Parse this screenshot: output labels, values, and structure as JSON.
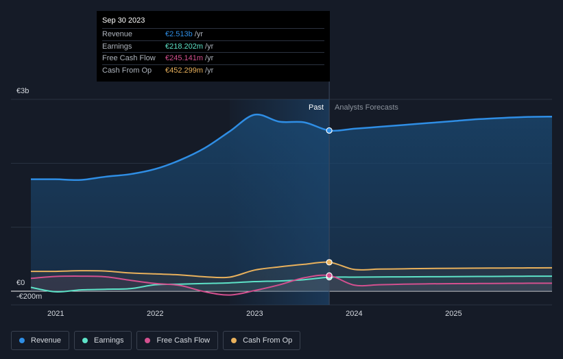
{
  "tooltip": {
    "date": "Sep 30 2023",
    "rows": [
      {
        "label": "Revenue",
        "value": "€2.513b",
        "unit": "/yr",
        "color": "#2f8ee5"
      },
      {
        "label": "Earnings",
        "value": "€218.202m",
        "unit": "/yr",
        "color": "#5ee3c8"
      },
      {
        "label": "Free Cash Flow",
        "value": "€245.141m",
        "unit": "/yr",
        "color": "#d4508f"
      },
      {
        "label": "Cash From Op",
        "value": "€452.299m",
        "unit": "/yr",
        "color": "#e9b15c"
      }
    ]
  },
  "legend": [
    {
      "label": "Revenue",
      "color": "#2f8ee5"
    },
    {
      "label": "Earnings",
      "color": "#5ee3c8"
    },
    {
      "label": "Free Cash Flow",
      "color": "#d4508f"
    },
    {
      "label": "Cash From Op",
      "color": "#e9b15c"
    }
  ],
  "chart_data": {
    "type": "line",
    "ylim": [
      -200,
      3000
    ],
    "y_ticks": [
      {
        "value": 3000,
        "label": "€3b"
      },
      {
        "value": 0,
        "label": "€0"
      },
      {
        "value": -200,
        "label": "-€200m"
      }
    ],
    "x_ticks": [
      {
        "value": 2021,
        "label": "2021"
      },
      {
        "value": 2022,
        "label": "2022"
      },
      {
        "value": 2023,
        "label": "2023"
      },
      {
        "value": 2024,
        "label": "2024"
      },
      {
        "value": 2025,
        "label": "2025"
      }
    ],
    "xlim": [
      2020.55,
      2025.99
    ],
    "divider_x": 2023.75,
    "highlight_start_x": 2022.75,
    "past_label": "Past",
    "forecast_label": "Analysts Forecasts",
    "grid": true,
    "series": [
      {
        "name": "Revenue",
        "color": "#2f8ee5",
        "x": [
          2020.75,
          2021.0,
          2021.25,
          2021.5,
          2021.75,
          2022.0,
          2022.25,
          2022.5,
          2022.75,
          2023.0,
          2023.25,
          2023.5,
          2023.75,
          2024.0,
          2024.25,
          2024.5,
          2024.75,
          2025.0,
          2025.25,
          2025.5,
          2025.75,
          2025.99
        ],
        "y": [
          1750,
          1750,
          1740,
          1790,
          1830,
          1910,
          2050,
          2240,
          2500,
          2760,
          2650,
          2640,
          2513,
          2540,
          2570,
          2600,
          2630,
          2660,
          2690,
          2710,
          2725,
          2730
        ]
      },
      {
        "name": "Earnings",
        "color": "#5ee3c8",
        "x": [
          2020.75,
          2021.0,
          2021.25,
          2021.5,
          2021.75,
          2022.0,
          2022.25,
          2022.5,
          2022.75,
          2023.0,
          2023.25,
          2023.5,
          2023.75,
          2024.0,
          2024.25,
          2024.5,
          2024.75,
          2025.0,
          2025.25,
          2025.5,
          2025.75,
          2025.99
        ],
        "y": [
          60,
          -10,
          20,
          30,
          40,
          100,
          110,
          120,
          130,
          150,
          160,
          180,
          218,
          220,
          222,
          224,
          226,
          228,
          230,
          232,
          234,
          235
        ]
      },
      {
        "name": "Free Cash Flow",
        "color": "#d4508f",
        "x": [
          2020.75,
          2021.0,
          2021.25,
          2021.5,
          2021.75,
          2022.0,
          2022.25,
          2022.5,
          2022.75,
          2023.0,
          2023.25,
          2023.5,
          2023.75,
          2024.0,
          2024.25,
          2024.5,
          2024.75,
          2025.0,
          2025.25,
          2025.5,
          2025.75,
          2025.99
        ],
        "y": [
          200,
          230,
          235,
          225,
          170,
          120,
          90,
          -10,
          -60,
          10,
          100,
          210,
          245,
          95,
          100,
          110,
          115,
          118,
          120,
          122,
          124,
          125
        ]
      },
      {
        "name": "Cash From Op",
        "color": "#e9b15c",
        "x": [
          2020.75,
          2021.0,
          2021.25,
          2021.5,
          2021.75,
          2022.0,
          2022.25,
          2022.5,
          2022.75,
          2023.0,
          2023.25,
          2023.5,
          2023.75,
          2024.0,
          2024.25,
          2024.5,
          2024.75,
          2025.0,
          2025.25,
          2025.5,
          2025.75,
          2025.99
        ],
        "y": [
          310,
          310,
          320,
          315,
          285,
          270,
          255,
          225,
          220,
          330,
          380,
          420,
          452,
          340,
          345,
          350,
          355,
          358,
          360,
          362,
          364,
          365
        ]
      }
    ]
  }
}
